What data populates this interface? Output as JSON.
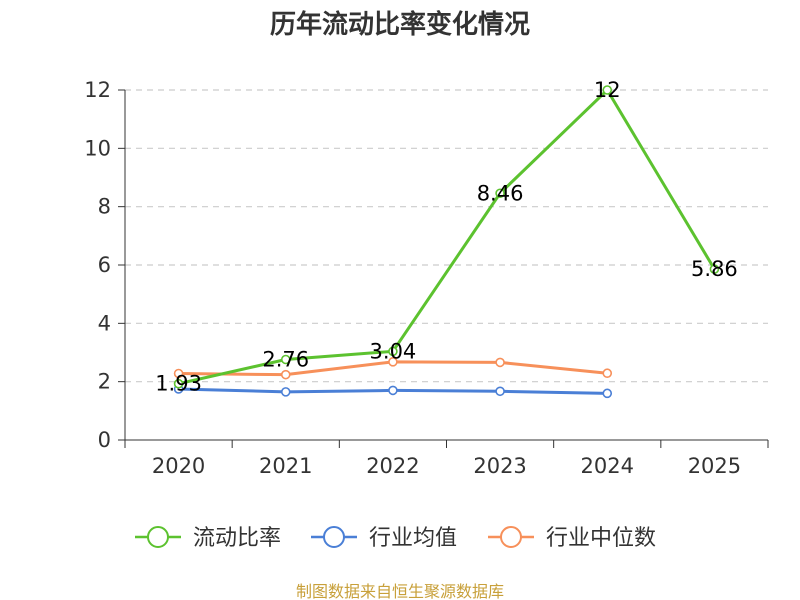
{
  "chart_data": {
    "type": "line",
    "title": "历年流动比率变化情况",
    "categories": [
      "2020",
      "2021",
      "2022",
      "2023",
      "2024",
      "2025"
    ],
    "ylim": [
      0,
      12
    ],
    "yticks": [
      0,
      2,
      4,
      6,
      8,
      10,
      12
    ],
    "grid": "horizontal dashed",
    "legend_position": "bottom",
    "series": [
      {
        "name": "流动比率",
        "color": "#5cc22f",
        "values": [
          1.93,
          2.76,
          3.04,
          8.46,
          12,
          5.86
        ],
        "labels": [
          "1.93",
          "2.76",
          "3.04",
          "8.46",
          "12",
          "5.86"
        ]
      },
      {
        "name": "行业均值",
        "color": "#4a7fd6",
        "values": [
          1.75,
          1.65,
          1.7,
          1.67,
          1.6,
          null
        ]
      },
      {
        "name": "行业中位数",
        "color": "#f7905a",
        "values": [
          2.28,
          2.24,
          2.68,
          2.66,
          2.29,
          null
        ]
      }
    ]
  },
  "source": {
    "text": "制图数据来自恒生聚源数据库",
    "color": "#c8a03a"
  }
}
